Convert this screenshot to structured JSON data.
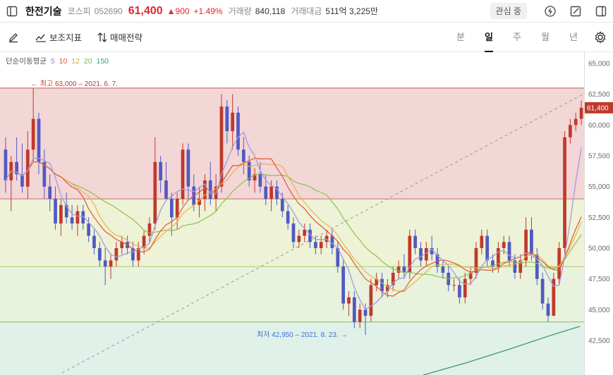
{
  "header": {
    "stock_name": "한전기술",
    "market": "코스피",
    "code": "052690",
    "price": "61,400",
    "change": "▲900",
    "change_rate": "+1.49%",
    "volume_label": "거래량",
    "volume": "840,118",
    "amount_label": "거래대금",
    "amount": "511억 3,225만",
    "watch_label": "관심 중"
  },
  "toolbar": {
    "indicator_label": "보조지표",
    "strategy_label": "매매전략",
    "periods": [
      "분",
      "일",
      "주",
      "월",
      "년"
    ],
    "active_period": "일"
  },
  "colors": {
    "up": "#c0392b",
    "down": "#5159c2",
    "ma5": "#a49ae0",
    "ma10": "#e0573a",
    "ma12": "#e7b450",
    "ma20": "#8bc34a",
    "ma150": "#3e9a6f"
  },
  "chart_data": {
    "type": "candlestick",
    "legend_title": "단순이동평균",
    "ma_periods": [
      "5",
      "10",
      "12",
      "20",
      "150"
    ],
    "y_ticks": [
      "65,000",
      "62,500",
      "60,000",
      "57,500",
      "55,000",
      "52,500",
      "50,000",
      "47,500",
      "45,000",
      "42,500"
    ],
    "ylim": [
      40000,
      66000
    ],
    "current_price_label": "61,400",
    "high_annotation": "← 최고 63,000 – 2021. 6. 7.",
    "low_annotation": "최저 42,950 – 2021. 8. 23. →",
    "levels": [
      63000,
      54000,
      48500,
      44000
    ],
    "candles": [
      [
        58000,
        59000,
        54500,
        55500
      ],
      [
        55500,
        57500,
        53000,
        57000
      ],
      [
        57000,
        59000,
        55500,
        56000
      ],
      [
        56000,
        58500,
        54500,
        55000
      ],
      [
        55000,
        59500,
        54000,
        58000
      ],
      [
        58000,
        63000,
        57000,
        60500
      ],
      [
        60500,
        61000,
        56000,
        57000
      ],
      [
        57000,
        58000,
        54000,
        55000
      ],
      [
        55000,
        56000,
        53000,
        54000
      ],
      [
        54000,
        55000,
        51500,
        52000
      ],
      [
        52000,
        54000,
        51000,
        53500
      ],
      [
        53500,
        54500,
        52000,
        52500
      ],
      [
        52500,
        53500,
        51500,
        52000
      ],
      [
        52000,
        53500,
        51000,
        53000
      ],
      [
        53000,
        53500,
        51500,
        52000
      ],
      [
        52000,
        52500,
        50500,
        51000
      ],
      [
        51000,
        51500,
        49500,
        50000
      ],
      [
        50000,
        50500,
        48500,
        49000
      ],
      [
        49000,
        50000,
        47000,
        48500
      ],
      [
        48500,
        49500,
        47500,
        49000
      ],
      [
        49000,
        50500,
        48500,
        50000
      ],
      [
        50000,
        51000,
        49500,
        50500
      ],
      [
        50500,
        51000,
        49500,
        50000
      ],
      [
        50000,
        50500,
        48500,
        49000
      ],
      [
        49000,
        50500,
        48500,
        50000
      ],
      [
        50000,
        51500,
        49500,
        51000
      ],
      [
        51000,
        52500,
        50500,
        52000
      ],
      [
        52000,
        59000,
        51500,
        57000
      ],
      [
        57000,
        57500,
        54500,
        55500
      ],
      [
        55500,
        57000,
        54000,
        54000
      ],
      [
        54000,
        54500,
        51000,
        52500
      ],
      [
        52500,
        54500,
        51500,
        54000
      ],
      [
        54000,
        58500,
        53500,
        58000
      ],
      [
        58000,
        58500,
        54000,
        55000
      ],
      [
        55000,
        56000,
        53000,
        53500
      ],
      [
        53500,
        55000,
        52500,
        54000
      ],
      [
        54000,
        56000,
        53000,
        55500
      ],
      [
        55500,
        57000,
        53500,
        54000
      ],
      [
        54000,
        56000,
        53000,
        55000
      ],
      [
        55000,
        62500,
        54500,
        61500
      ],
      [
        61500,
        62000,
        58500,
        59500
      ],
      [
        59500,
        62500,
        58000,
        61000
      ],
      [
        61000,
        61500,
        57500,
        58000
      ],
      [
        58000,
        59000,
        56000,
        57000
      ],
      [
        57000,
        57500,
        55000,
        55500
      ],
      [
        55500,
        56500,
        54500,
        56000
      ],
      [
        56000,
        57000,
        54500,
        55000
      ],
      [
        55000,
        56000,
        53500,
        54000
      ],
      [
        54000,
        55500,
        53000,
        55000
      ],
      [
        55000,
        55500,
        53500,
        54000
      ],
      [
        54000,
        54500,
        52500,
        53000
      ],
      [
        53000,
        53500,
        51500,
        52000
      ],
      [
        52000,
        52500,
        50000,
        50500
      ],
      [
        50500,
        51500,
        50000,
        51000
      ],
      [
        51000,
        52000,
        50500,
        51500
      ],
      [
        51500,
        52000,
        50000,
        50500
      ],
      [
        50500,
        51000,
        49500,
        50000
      ],
      [
        50000,
        51000,
        49500,
        50500
      ],
      [
        50500,
        51500,
        50000,
        51000
      ],
      [
        51000,
        51500,
        49500,
        50000
      ],
      [
        50000,
        50500,
        48000,
        48500
      ],
      [
        48500,
        49000,
        45000,
        45500
      ],
      [
        45500,
        46500,
        44500,
        46000
      ],
      [
        46000,
        46500,
        43500,
        44000
      ],
      [
        44000,
        45500,
        43500,
        45000
      ],
      [
        45000,
        45500,
        42950,
        44500
      ],
      [
        44500,
        47500,
        44000,
        47000
      ],
      [
        47000,
        48000,
        46500,
        47500
      ],
      [
        47500,
        48000,
        46000,
        46500
      ],
      [
        46500,
        47500,
        46000,
        47000
      ],
      [
        47000,
        48500,
        46500,
        48000
      ],
      [
        48000,
        49000,
        47500,
        48500
      ],
      [
        48500,
        49500,
        47500,
        48000
      ],
      [
        48000,
        51500,
        47500,
        51000
      ],
      [
        51000,
        51500,
        49500,
        50000
      ],
      [
        50000,
        50500,
        48500,
        49000
      ],
      [
        49000,
        50500,
        48500,
        50000
      ],
      [
        50000,
        51000,
        49000,
        49500
      ],
      [
        49500,
        50000,
        48000,
        48500
      ],
      [
        48500,
        49000,
        47500,
        48000
      ],
      [
        48000,
        48500,
        46500,
        47000
      ],
      [
        47000,
        47500,
        46500,
        47000
      ],
      [
        47000,
        47500,
        45500,
        46000
      ],
      [
        46000,
        48000,
        45500,
        47500
      ],
      [
        47500,
        48500,
        47000,
        48000
      ],
      [
        48000,
        50500,
        47500,
        50000
      ],
      [
        50000,
        51500,
        49500,
        51000
      ],
      [
        51000,
        51500,
        48500,
        49000
      ],
      [
        49000,
        49500,
        48000,
        48500
      ],
      [
        48500,
        50500,
        48000,
        50000
      ],
      [
        50000,
        51000,
        49500,
        50500
      ],
      [
        50500,
        51000,
        48500,
        49000
      ],
      [
        49000,
        49500,
        47500,
        48000
      ],
      [
        48000,
        49500,
        47500,
        49000
      ],
      [
        49000,
        52500,
        48500,
        51500
      ],
      [
        51500,
        52500,
        49000,
        49500
      ],
      [
        49500,
        50000,
        47000,
        47500
      ],
      [
        47500,
        48000,
        45000,
        45500
      ],
      [
        45500,
        46000,
        44000,
        44500
      ],
      [
        44500,
        48000,
        44500,
        47500
      ],
      [
        47500,
        50500,
        47000,
        50000
      ],
      [
        50000,
        59500,
        49500,
        59000
      ],
      [
        59000,
        60500,
        58500,
        60000
      ],
      [
        60000,
        61000,
        59500,
        60500
      ],
      [
        60500,
        62000,
        60000,
        61400
      ]
    ]
  }
}
